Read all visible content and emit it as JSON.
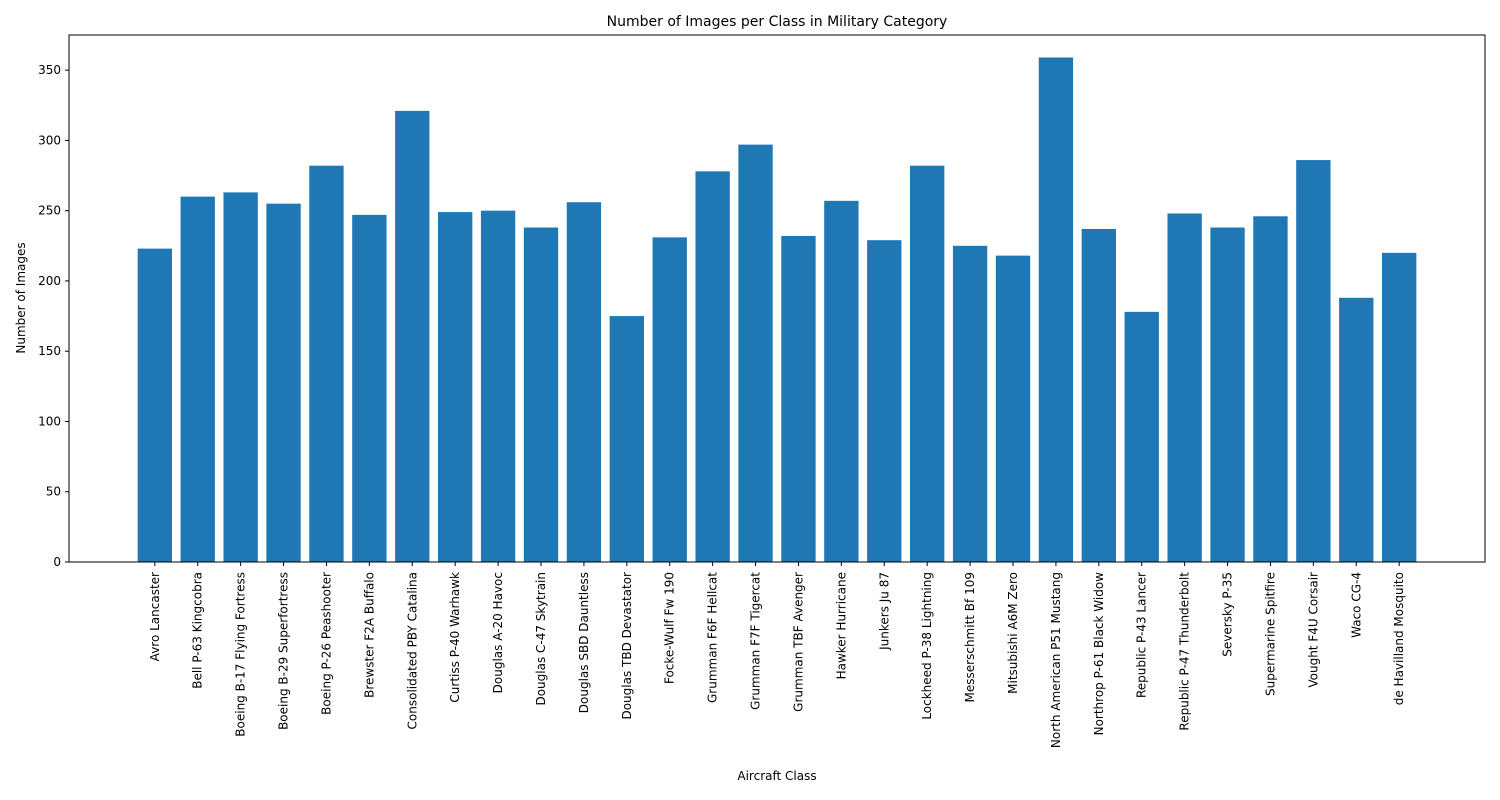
{
  "chart_data": {
    "type": "bar",
    "title": "Number of Images per Class in Military Category",
    "xlabel": "Aircraft Class",
    "ylabel": "Number of Images",
    "ylim": [
      0,
      375
    ],
    "yticks": [
      0,
      50,
      100,
      150,
      200,
      250,
      300,
      350
    ],
    "grid": false,
    "bar_color": "#1f77b4",
    "categories": [
      "Avro Lancaster",
      "Bell P-63 Kingcobra",
      "Boeing B-17 Flying Fortress",
      "Boeing B-29 Superfortress",
      "Boeing P-26 Peashooter",
      "Brewster F2A Buffalo",
      "Consolidated PBY Catalina",
      "Curtiss P-40 Warhawk",
      "Douglas A-20 Havoc",
      "Douglas C-47 Skytrain",
      "Douglas SBD Dauntless",
      "Douglas TBD Devastator",
      "Focke-Wulf Fw 190",
      "Grumman F6F Hellcat",
      "Grumman F7F Tigercat",
      "Grumman TBF Avenger",
      "Hawker Hurricane",
      "Junkers Ju 87",
      "Lockheed P-38 Lightning",
      "Messerschmitt Bf 109",
      "Mitsubishi A6M Zero",
      "North American P51 Mustang",
      "Northrop P-61 Black Widow",
      "Republic P-43 Lancer",
      "Republic P-47 Thunderbolt",
      "Seversky P-35",
      "Supermarine Spitfire",
      "Vought F4U Corsair",
      "Waco CG-4",
      "de Havilland Mosquito"
    ],
    "values": [
      223,
      260,
      263,
      255,
      282,
      247,
      321,
      249,
      250,
      238,
      256,
      175,
      231,
      278,
      297,
      232,
      257,
      229,
      282,
      225,
      218,
      359,
      237,
      178,
      248,
      238,
      246,
      286,
      188,
      220
    ]
  }
}
